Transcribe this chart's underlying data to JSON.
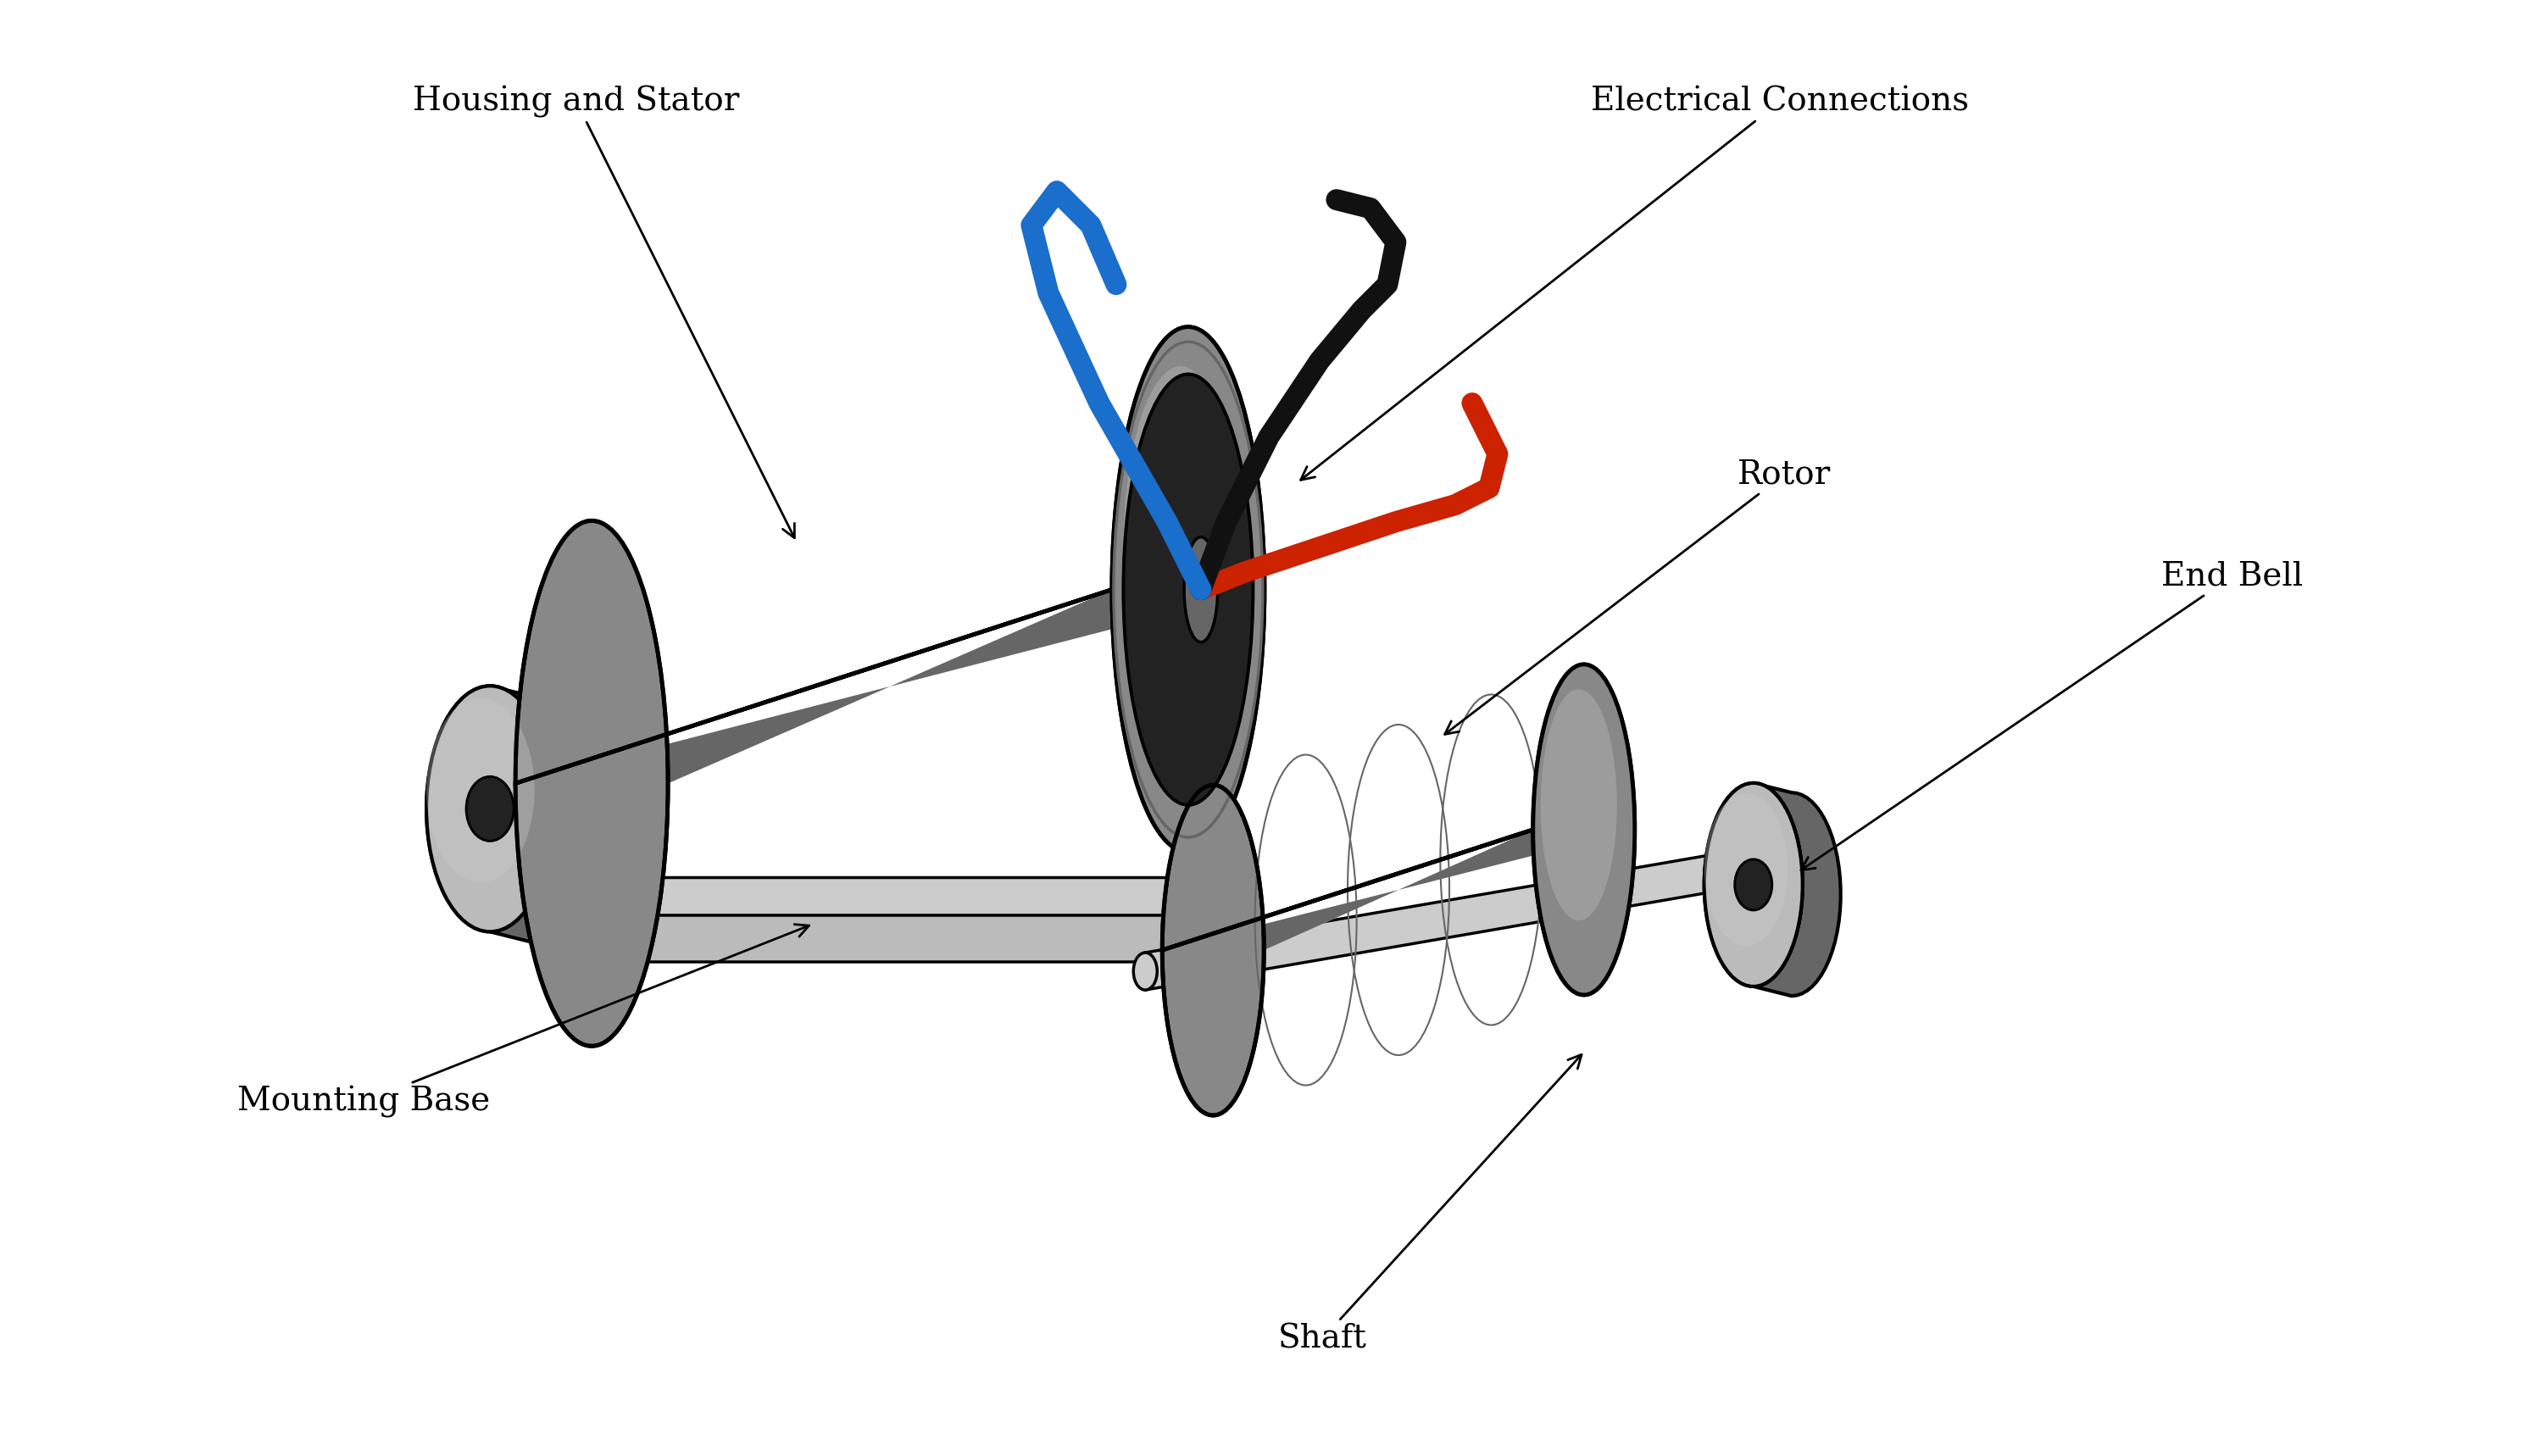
{
  "background_color": "#ffffff",
  "labels": {
    "housing_stator": "Housing and Stator",
    "electrical_connections": "Electrical Connections",
    "rotor": "Rotor",
    "end_bell": "End Bell",
    "mounting_base": "Mounting Base",
    "shaft": "Shaft"
  },
  "font_size": 28,
  "colors": {
    "gray_main": "#888888",
    "gray_dark": "#444444",
    "gray_mid": "#666666",
    "gray_light": "#bbbbbb",
    "gray_lighter": "#cccccc",
    "gray_darkest": "#222222",
    "wire_blue": "#1a6ecc",
    "wire_black": "#111111",
    "wire_red": "#cc2200"
  }
}
